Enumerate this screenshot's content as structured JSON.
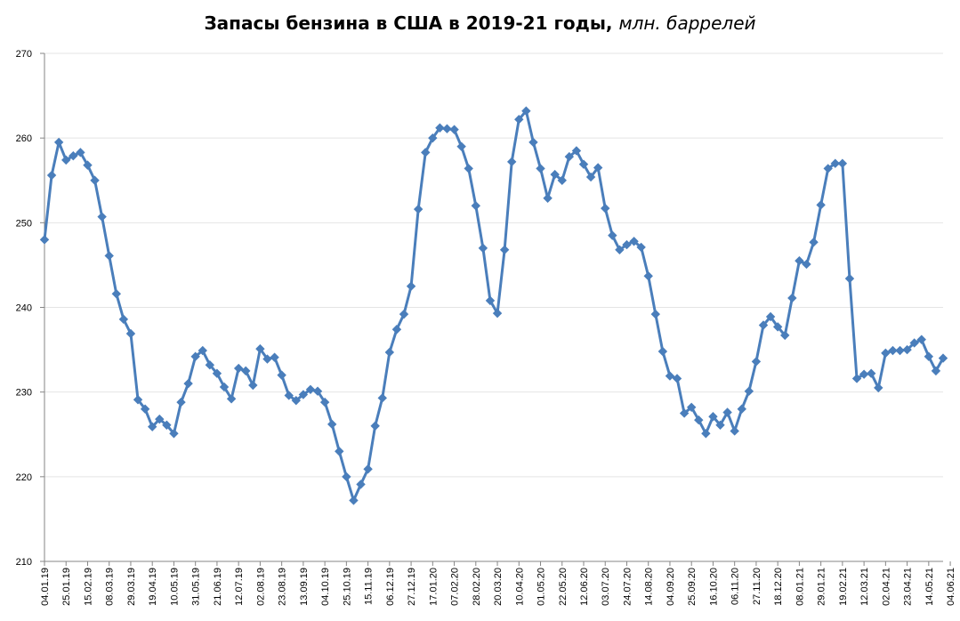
{
  "chart_data": {
    "type": "line",
    "title": "Запасы бензина в США в 2019-21 годы,",
    "title_units": "млн. баррелей",
    "xlabel": "",
    "ylabel": "",
    "ylim": [
      210,
      270
    ],
    "y_ticks": [
      210,
      220,
      230,
      240,
      250,
      260,
      270
    ],
    "grid": true,
    "legend": "none",
    "colors": {
      "series": "#4a7ebb",
      "grid": "#e4e4e4",
      "axis": "#868686"
    },
    "x_ticks": [
      "04.01.19",
      "25.01.19",
      "15.02.19",
      "08.03.19",
      "29.03.19",
      "19.04.19",
      "10.05.19",
      "31.05.19",
      "21.06.19",
      "12.07.19",
      "02.08.19",
      "23.08.19",
      "13.09.19",
      "04.10.19",
      "25.10.19",
      "15.11.19",
      "06.12.19",
      "27.12.19",
      "17.01.20",
      "07.02.20",
      "28.02.20",
      "20.03.20",
      "10.04.20",
      "01.05.20",
      "22.05.20",
      "12.06.20",
      "03.07.20",
      "24.07.20",
      "14.08.20",
      "04.09.20",
      "25.09.20",
      "16.10.20",
      "06.11.20",
      "27.11.20",
      "18.12.20",
      "08.01.21",
      "29.01.21",
      "19.02.21",
      "12.03.21",
      "02.04.21",
      "23.04.21",
      "14.05.21",
      "04.06.21"
    ],
    "series": [
      {
        "values": [
          248.0,
          255.6,
          259.5,
          257.4,
          257.9,
          258.3,
          256.8,
          255.0,
          250.7,
          246.1,
          241.6,
          238.6,
          236.9,
          229.1,
          228.0,
          225.9,
          226.8,
          226.1,
          225.1,
          228.8,
          231.0,
          234.2,
          234.9,
          233.2,
          232.2,
          230.6,
          229.2,
          232.8,
          232.5,
          230.8,
          235.1,
          233.9,
          234.1,
          232.0,
          229.6,
          229.0,
          229.7,
          230.3,
          230.1,
          228.8,
          226.2,
          223.0,
          220.0,
          217.2,
          219.1,
          220.9,
          226.0,
          229.3,
          234.7,
          237.4,
          239.2,
          242.5,
          251.6,
          258.3,
          260.0,
          261.2,
          261.1,
          261.0,
          259.0,
          256.4,
          252.0,
          247.0,
          240.8,
          239.3,
          246.8,
          257.2,
          262.2,
          263.2,
          259.5,
          256.4,
          252.9,
          255.7,
          255.0,
          257.8,
          258.5,
          256.9,
          255.4,
          256.5,
          251.7,
          248.5,
          246.8,
          247.4,
          247.8,
          247.1,
          243.7,
          239.2,
          234.8,
          231.9,
          231.6,
          227.5,
          228.2,
          226.7,
          225.1,
          227.1,
          226.1,
          227.6,
          225.4,
          228.0,
          230.1,
          233.6,
          237.9,
          238.9,
          237.7,
          236.7,
          241.1,
          245.5,
          245.1,
          247.7,
          252.1,
          256.4,
          257.0,
          257.0,
          243.4,
          231.6,
          232.1,
          232.2,
          230.5,
          234.6,
          234.9,
          234.9,
          235.0,
          235.8,
          236.2,
          234.2,
          232.5,
          234.0
        ]
      }
    ]
  }
}
